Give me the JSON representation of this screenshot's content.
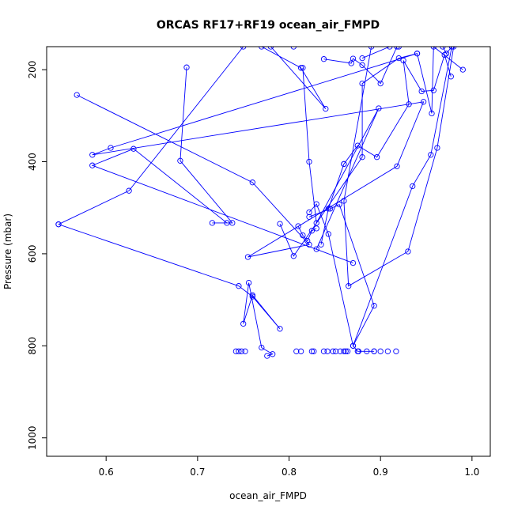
{
  "chart_data": {
    "type": "line",
    "title": "ORCAS RF17+RF19 ocean_air_FMPD",
    "xlabel": "ocean_air_FMPD",
    "ylabel": "Pressure (mbar)",
    "xlim": [
      0.535,
      1.02
    ],
    "ylim": [
      1040,
      150
    ],
    "y_reversed": true,
    "x_ticks": [
      "0.6",
      "0.7",
      "0.8",
      "0.9",
      "1.0"
    ],
    "y_ticks": [
      "200",
      "400",
      "600",
      "800",
      "1000"
    ],
    "grid": false,
    "legend": "none",
    "color": "#0000ff",
    "series": [
      {
        "x": [
          0.568,
          0.76,
          0.822,
          0.755,
          0.918,
          0.947,
          0.585,
          0.605,
          0.94
        ],
        "y": [
          255,
          445,
          580,
          607,
          410,
          270,
          385,
          370,
          165
        ]
      },
      {
        "x": [
          0.688,
          0.681,
          0.738,
          0.716,
          0.732,
          0.63,
          0.585,
          0.87
        ],
        "y": [
          195,
          398,
          533,
          533,
          533,
          372,
          408,
          620
        ]
      },
      {
        "x": [
          0.548,
          0.625,
          0.75,
          0.805,
          0.89,
          0.86,
          0.865,
          0.93,
          0.962,
          0.98
        ],
        "y": [
          536,
          463,
          150,
          150,
          150,
          485,
          670,
          595,
          370,
          150
        ]
      },
      {
        "x": [
          0.548,
          0.745,
          0.76,
          0.79,
          0.76,
          0.75,
          0.756,
          0.77,
          0.782,
          0.776
        ],
        "y": [
          536,
          670,
          693,
          763,
          690,
          752,
          663,
          804,
          818,
          822
        ]
      },
      {
        "x": [
          0.815,
          0.822,
          0.83,
          0.898,
          0.83
        ],
        "y": [
          196,
          400,
          533,
          284,
          590
        ]
      },
      {
        "x": [
          0.822,
          0.83,
          0.843,
          0.87,
          0.935,
          0.955,
          0.978
        ],
        "y": [
          510,
          492,
          557,
          800,
          453,
          385,
          150
        ]
      },
      {
        "x": [
          0.822,
          0.845,
          0.855,
          0.893,
          0.87,
          0.875,
          0.893
        ],
        "y": [
          520,
          502,
          493,
          713,
          800,
          812,
          812
        ]
      },
      {
        "x": [
          0.835,
          0.843,
          0.86,
          0.86,
          0.875,
          0.896,
          0.931,
          0.925,
          0.945,
          0.958,
          0.97,
          0.977
        ],
        "y": [
          580,
          502,
          405,
          405,
          365,
          390,
          275,
          180,
          247,
          245,
          168,
          215
        ]
      },
      {
        "x": [
          0.79,
          0.805,
          0.88,
          0.88,
          0.92,
          0.94,
          0.956,
          0.958,
          0.99
        ],
        "y": [
          535,
          605,
          390,
          230,
          175,
          165,
          295,
          150,
          200
        ]
      },
      {
        "x": [
          0.81,
          0.815,
          0.82,
          0.825,
          0.83
        ],
        "y": [
          540,
          560,
          572,
          550,
          545
        ]
      },
      {
        "x": [
          0.77,
          0.813,
          0.84,
          0.78
        ],
        "y": [
          150,
          196,
          285,
          150
        ]
      },
      {
        "x": [
          0.838,
          0.868,
          0.87,
          0.88,
          0.9,
          0.918
        ],
        "y": [
          177,
          186,
          176,
          190,
          230,
          150
        ]
      },
      {
        "x": [
          0.88,
          0.91,
          0.92,
          0.968,
          0.972,
          0.978
        ],
        "y": [
          175,
          150,
          150,
          150,
          165,
          150
        ]
      },
      {
        "x": [
          0.742,
          0.745,
          0.748,
          0.752
        ],
        "y": [
          812,
          812,
          812,
          812
        ],
        "markers_only": true
      },
      {
        "x": [
          0.808,
          0.813,
          0.825,
          0.827,
          0.838,
          0.842,
          0.848,
          0.851,
          0.856,
          0.86,
          0.862,
          0.864,
          0.876,
          0.885,
          0.893,
          0.9,
          0.908,
          0.917
        ],
        "y": [
          812,
          812,
          812,
          812,
          812,
          812,
          812,
          812,
          812,
          812,
          812,
          812,
          812,
          812,
          812,
          812,
          812,
          812
        ],
        "markers_only": true
      }
    ]
  }
}
